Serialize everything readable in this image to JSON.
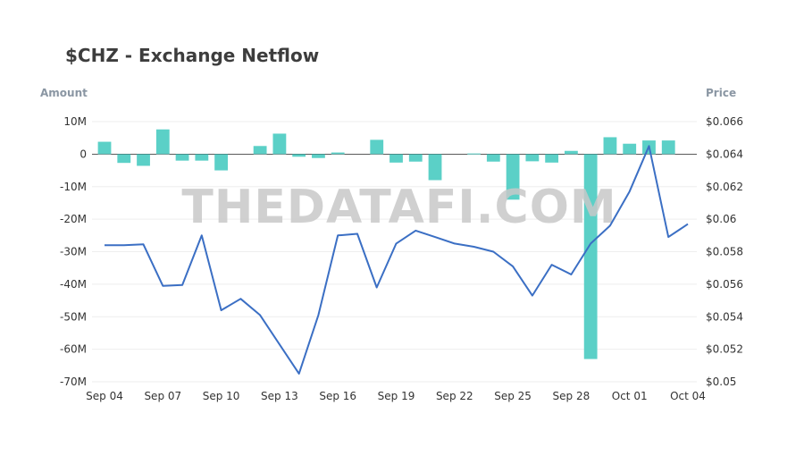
{
  "chart_data": {
    "type": "bar+line",
    "title": "$CHZ - Exchange Netflow",
    "left_axis_title": "Amount",
    "right_axis_title": "Price",
    "watermark": "THEDATAFI.COM",
    "x_tick_labels": [
      "Sep 04",
      "Sep 07",
      "Sep 10",
      "Sep 13",
      "Sep 16",
      "Sep 19",
      "Sep 22",
      "Sep 25",
      "Sep 28",
      "Oct 01",
      "Oct 04"
    ],
    "y_left": {
      "min": -70000000,
      "max": 10000000,
      "ticks": [
        10000000,
        0,
        -10000000,
        -20000000,
        -30000000,
        -40000000,
        -50000000,
        -60000000,
        -70000000
      ],
      "tick_labels": [
        "10M",
        "0",
        "-10M",
        "-20M",
        "-30M",
        "-40M",
        "-50M",
        "-60M",
        "-70M"
      ]
    },
    "y_right": {
      "min": 0.05,
      "max": 0.066,
      "ticks": [
        0.066,
        0.064,
        0.062,
        0.06,
        0.058,
        0.056,
        0.054,
        0.052,
        0.05
      ],
      "tick_labels": [
        "$0.066",
        "$0.064",
        "$0.062",
        "$0.06",
        "$0.058",
        "$0.056",
        "$0.054",
        "$0.052",
        "$0.05"
      ]
    },
    "dates": [
      "Sep 04",
      "Sep 05",
      "Sep 06",
      "Sep 07",
      "Sep 08",
      "Sep 09",
      "Sep 10",
      "Sep 11",
      "Sep 12",
      "Sep 13",
      "Sep 14",
      "Sep 15",
      "Sep 16",
      "Sep 17",
      "Sep 18",
      "Sep 19",
      "Sep 20",
      "Sep 21",
      "Sep 22",
      "Sep 23",
      "Sep 24",
      "Sep 25",
      "Sep 26",
      "Sep 27",
      "Sep 28",
      "Sep 29",
      "Sep 30",
      "Oct 01",
      "Oct 02",
      "Oct 03",
      "Oct 04"
    ],
    "series": [
      {
        "type": "bar",
        "color": "#5bd0c7",
        "values": [
          3800000,
          -2700000,
          -3600000,
          7600000,
          -2000000,
          -2000000,
          -5000000,
          0,
          2500000,
          6300000,
          -800000,
          -1200000,
          500000,
          0,
          4400000,
          -2600000,
          -2300000,
          -8000000,
          0,
          200000,
          -2300000,
          -14000000,
          -2200000,
          -2600000,
          1000000,
          -63000000,
          5200000,
          3200000,
          4200000,
          4200000,
          0
        ]
      },
      {
        "type": "line",
        "color": "#3b6fc4",
        "values": [
          0.0584,
          0.0584,
          0.05845,
          0.0559,
          0.05595,
          0.059,
          0.0544,
          0.0551,
          0.0541,
          0.0523,
          0.0505,
          0.0541,
          0.059,
          0.0591,
          0.0558,
          0.0585,
          0.0593,
          0.0589,
          0.0585,
          0.0583,
          0.058,
          0.0571,
          0.0553,
          0.0572,
          0.0566,
          0.0585,
          0.0596,
          0.0617,
          0.0645,
          0.0589,
          0.0597
        ]
      }
    ]
  }
}
